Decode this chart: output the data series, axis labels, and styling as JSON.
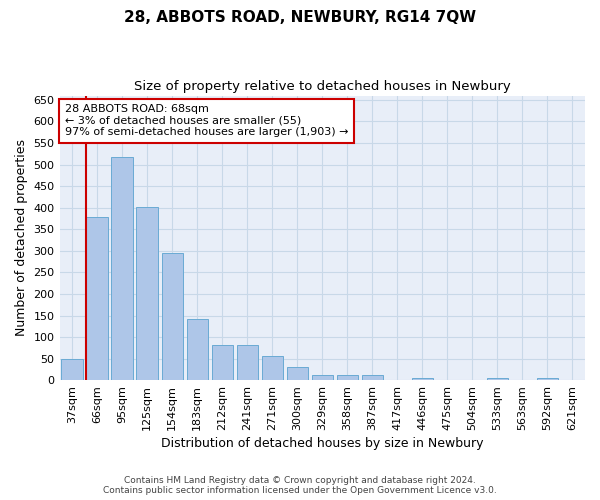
{
  "title": "28, ABBOTS ROAD, NEWBURY, RG14 7QW",
  "subtitle": "Size of property relative to detached houses in Newbury",
  "xlabel": "Distribution of detached houses by size in Newbury",
  "ylabel": "Number of detached properties",
  "footer1": "Contains HM Land Registry data © Crown copyright and database right 2024.",
  "footer2": "Contains public sector information licensed under the Open Government Licence v3.0.",
  "categories": [
    "37sqm",
    "66sqm",
    "95sqm",
    "125sqm",
    "154sqm",
    "183sqm",
    "212sqm",
    "241sqm",
    "271sqm",
    "300sqm",
    "329sqm",
    "358sqm",
    "387sqm",
    "417sqm",
    "446sqm",
    "475sqm",
    "504sqm",
    "533sqm",
    "563sqm",
    "592sqm",
    "621sqm"
  ],
  "values": [
    50,
    378,
    518,
    402,
    295,
    143,
    82,
    82,
    55,
    30,
    12,
    12,
    12,
    0,
    5,
    0,
    0,
    5,
    0,
    5,
    0
  ],
  "bar_color": "#aec6e8",
  "bar_edge_color": "#6aaad4",
  "vline_color": "#cc0000",
  "vline_x_index": 1,
  "annotation_text": "28 ABBOTS ROAD: 68sqm\n← 3% of detached houses are smaller (55)\n97% of semi-detached houses are larger (1,903) →",
  "annotation_box_color": "#ffffff",
  "annotation_border_color": "#cc0000",
  "ylim": [
    0,
    660
  ],
  "yticks": [
    0,
    50,
    100,
    150,
    200,
    250,
    300,
    350,
    400,
    450,
    500,
    550,
    600,
    650
  ],
  "grid_color": "#c8d8e8",
  "bg_color": "#e8eef8",
  "fig_color": "#ffffff",
  "title_fontsize": 11,
  "subtitle_fontsize": 9.5,
  "axis_label_fontsize": 9,
  "tick_fontsize": 8,
  "annotation_fontsize": 8,
  "footer_fontsize": 6.5
}
